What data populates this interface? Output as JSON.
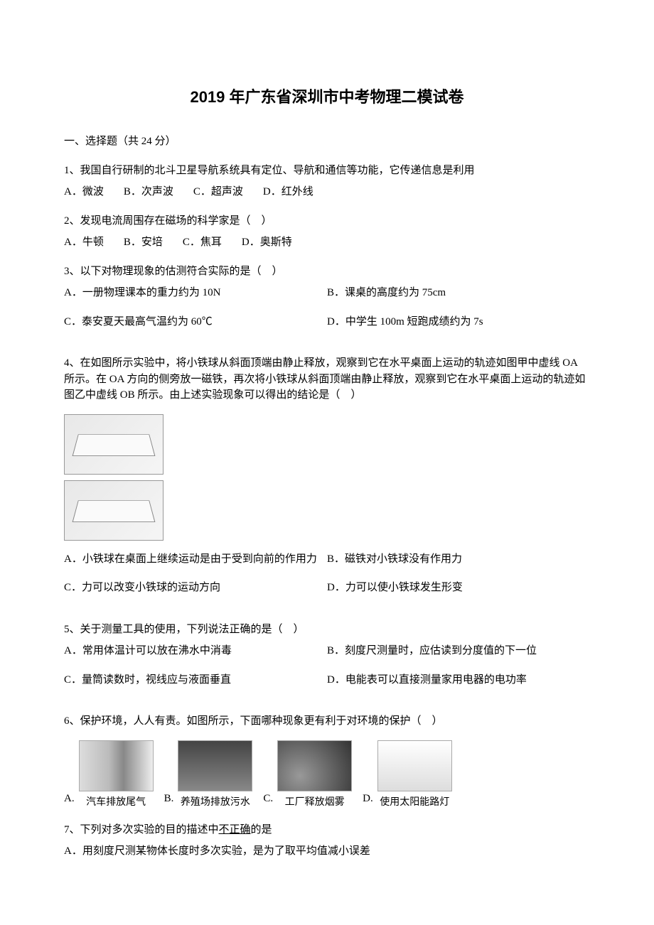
{
  "title": "2019 年广东省深圳市中考物理二模试卷",
  "section1_header": "一、选择题（共 24 分）",
  "q1": {
    "text": "1、我国自行研制的北斗卫星导航系统具有定位、导航和通信等功能，它传递信息是利用",
    "a": "A．微波",
    "b": "B．次声波",
    "c": "C．超声波",
    "d": "D．红外线"
  },
  "q2": {
    "text": "2、发现电流周围存在磁场的科学家是（　）",
    "a": "A．牛顿",
    "b": "B．安培",
    "c": "C．焦耳",
    "d": "D．奥斯特"
  },
  "q3": {
    "text": "3、以下对物理现象的估测符合实际的是（　）",
    "a": "A．一册物理课本的重力约为 10N",
    "b": "B．课桌的高度约为 75cm",
    "c": "C．泰安夏天最高气温约为 60℃",
    "d": "D．中学生 100m 短跑成绩约为 7s"
  },
  "q4": {
    "text": "4、在如图所示实验中，将小铁球从斜面顶端由静止释放，观察到它在水平桌面上运动的轨迹如图甲中虚线 OA 所示。在 OA 方向的侧旁放一磁铁，再次将小铁球从斜面顶端由静止释放，观察到它在水平桌面上运动的轨迹如图乙中虚线 OB 所示。由上述实验现象可以得出的结论是（　）",
    "a": "A．小铁球在桌面上继续运动是由于受到向前的作用力",
    "b": "B．磁铁对小铁球没有作用力",
    "c": "C．力可以改变小铁球的运动方向",
    "d": "D．力可以使小铁球发生形变"
  },
  "q5": {
    "text": "5、关于测量工具的使用，下列说法正确的是（　）",
    "a": "A．常用体温计可以放在沸水中消毒",
    "b": "B．刻度尺测量时，应估读到分度值的下一位",
    "c": "C．量筒读数时，视线应与液面垂直",
    "d": "D．电能表可以直接测量家用电器的电功率"
  },
  "q6": {
    "text": "6、保护环境，人人有责。如图所示，下面哪种现象更有利于对环境的保护（　）",
    "a_letter": "A.",
    "a_caption": "汽车排放尾气",
    "b_letter": "B.",
    "b_caption": "养殖场排放污水",
    "c_letter": "C.",
    "c_caption": "工厂释放烟雾",
    "d_letter": "D.",
    "d_caption": "使用太阳能路灯"
  },
  "q7": {
    "text_pre": "7、下列对多次实验的目的描述中",
    "text_underline": "不正确",
    "text_post": "的是",
    "a": "A．用刻度尺测某物体长度时多次实验，是为了取平均值减小误差"
  }
}
